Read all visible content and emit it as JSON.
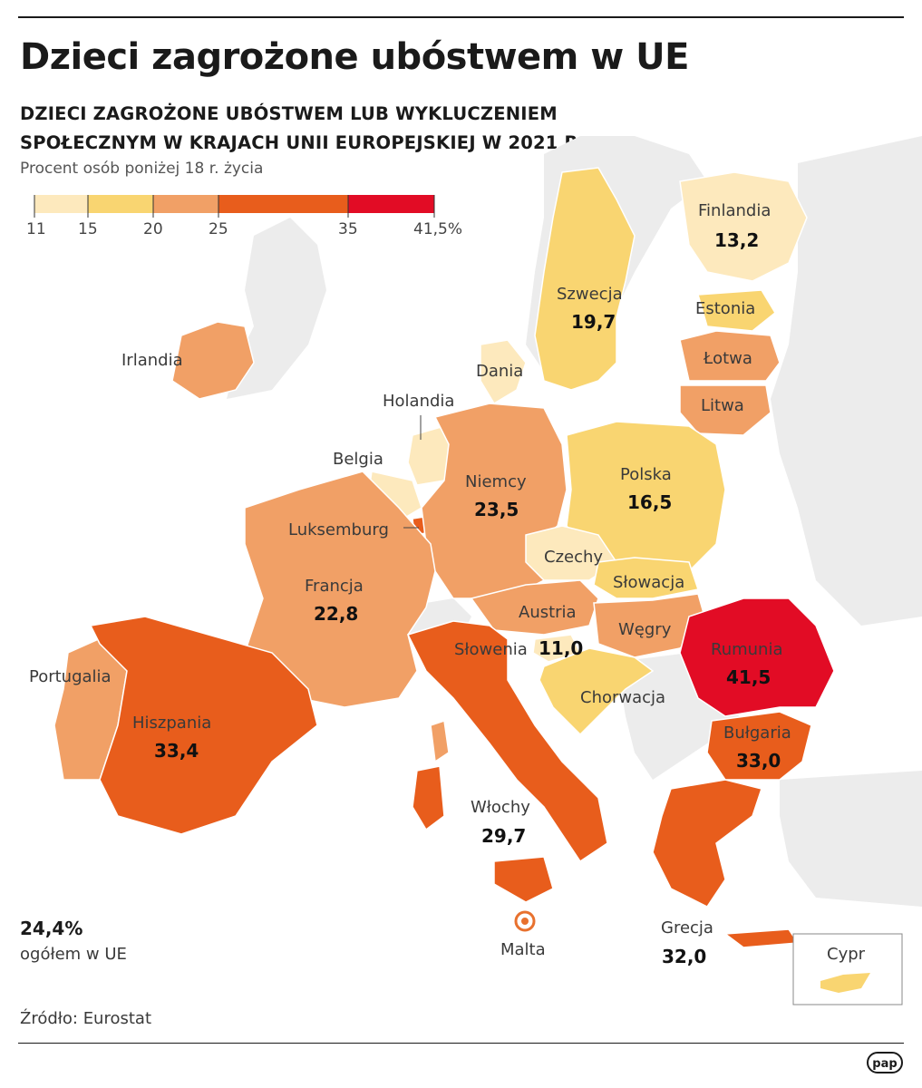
{
  "title": "Dzieci zagrożone ubóstwem w UE",
  "subtitle_line1": "DZIECI ZAGROŻONE UBÓSTWEM LUB WYKLUCZENIEM",
  "subtitle_line2": "SPOŁECZNYM W KRAJACH UNII EUROPEJSKIEJ W 2021 R.",
  "unit_note": "Procent osób poniżej 18 r. życia",
  "legend": {
    "ticks": [
      "11",
      "15",
      "20",
      "25",
      "35",
      "41,5%"
    ],
    "bins": [
      {
        "from": 11,
        "to": 15,
        "color": "#fde9bd"
      },
      {
        "from": 15,
        "to": 20,
        "color": "#f9d571"
      },
      {
        "from": 20,
        "to": 25,
        "color": "#f1a066"
      },
      {
        "from": 25,
        "to": 35,
        "color": "#e85d1c"
      },
      {
        "from": 35,
        "to": 41.5,
        "color": "#e20c25"
      }
    ]
  },
  "countries": [
    {
      "key": "finlandia",
      "name": "Finlandia",
      "value": "13,2"
    },
    {
      "key": "szwecja",
      "name": "Szwecja",
      "value": "19,7"
    },
    {
      "key": "estonia",
      "name": "Estonia"
    },
    {
      "key": "lotwa",
      "name": "Łotwa"
    },
    {
      "key": "litwa",
      "name": "Litwa"
    },
    {
      "key": "dania",
      "name": "Dania"
    },
    {
      "key": "irlandia",
      "name": "Irlandia"
    },
    {
      "key": "holandia",
      "name": "Holandia"
    },
    {
      "key": "belgia",
      "name": "Belgia"
    },
    {
      "key": "luksemburg",
      "name": "Luksemburg"
    },
    {
      "key": "niemcy",
      "name": "Niemcy",
      "value": "23,5"
    },
    {
      "key": "polska",
      "name": "Polska",
      "value": "16,5"
    },
    {
      "key": "czechy",
      "name": "Czechy"
    },
    {
      "key": "slowacja",
      "name": "Słowacja"
    },
    {
      "key": "austria",
      "name": "Austria"
    },
    {
      "key": "wegry",
      "name": "Węgry"
    },
    {
      "key": "slowenia",
      "name": "Słowenia",
      "value": "11,0"
    },
    {
      "key": "francja",
      "name": "Francja",
      "value": "22,8"
    },
    {
      "key": "rumunia",
      "name": "Rumunia",
      "value": "41,5"
    },
    {
      "key": "bulgaria",
      "name": "Bułgaria",
      "value": "33,0"
    },
    {
      "key": "chorwacja",
      "name": "Chorwacja"
    },
    {
      "key": "portugalia",
      "name": "Portugalia"
    },
    {
      "key": "hiszpania",
      "name": "Hiszpania",
      "value": "33,4"
    },
    {
      "key": "wlochy",
      "name": "Włochy",
      "value": "29,7"
    },
    {
      "key": "malta",
      "name": "Malta"
    },
    {
      "key": "grecja",
      "name": "Grecja",
      "value": "32,0"
    },
    {
      "key": "cypr",
      "name": "Cypr"
    }
  ],
  "eu_total": {
    "value": "24,4%",
    "label": "ogółem w UE"
  },
  "source": "Źródło: Eurostat",
  "logo": "pap",
  "colors": {
    "bin_11_15": "#fde9bd",
    "bin_15_20": "#f9d571",
    "bin_20_25": "#f1a066",
    "bin_25_35": "#e85d1c",
    "bin_35_41": "#e20c25",
    "non_eu": "#ebebeb"
  }
}
